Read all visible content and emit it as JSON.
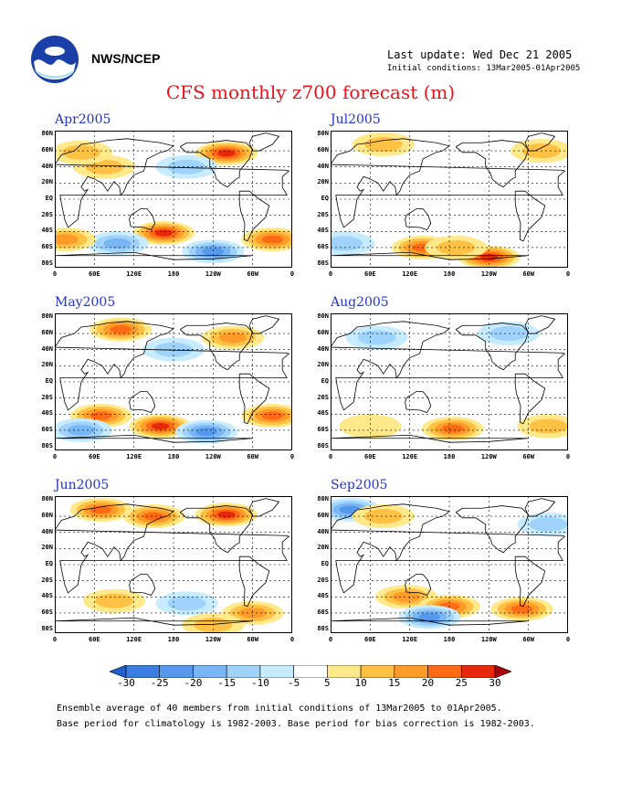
{
  "header": {
    "org": "NWS/NCEP",
    "last_update": "Last update: Wed Dec 21 2005",
    "initial_conditions": "Initial conditions: 13Mar2005-01Apr2005",
    "title": "CFS monthly z700 forecast (m)"
  },
  "logo_icon": "noaa-logo-icon",
  "lat_labels": [
    "80N",
    "60N",
    "40N",
    "20N",
    "EQ",
    "20S",
    "40S",
    "60S",
    "80S"
  ],
  "lon_labels": [
    "0",
    "60E",
    "120E",
    "180",
    "120W",
    "60W",
    "0"
  ],
  "panels": [
    {
      "month": "Apr2005",
      "anomalies": [
        {
          "lon": 260,
          "lat": 57,
          "v": 25
        },
        {
          "lon": 165,
          "lat": -42,
          "v": 25
        },
        {
          "lon": 75,
          "lat": 40,
          "v": 10
        },
        {
          "lon": 330,
          "lat": -50,
          "v": 20
        },
        {
          "lon": 95,
          "lat": -55,
          "v": -15
        },
        {
          "lon": 240,
          "lat": -65,
          "v": -20
        },
        {
          "lon": 40,
          "lat": 58,
          "v": 10
        },
        {
          "lon": 200,
          "lat": 40,
          "v": -10
        },
        {
          "lon": 15,
          "lat": -50,
          "v": 15
        }
      ]
    },
    {
      "month": "Jul2005",
      "anomalies": [
        {
          "lon": 240,
          "lat": -72,
          "v": 25
        },
        {
          "lon": 140,
          "lat": -60,
          "v": 20
        },
        {
          "lon": 20,
          "lat": -55,
          "v": -10
        },
        {
          "lon": 80,
          "lat": 68,
          "v": 10
        },
        {
          "lon": 190,
          "lat": -60,
          "v": 10
        },
        {
          "lon": 320,
          "lat": 60,
          "v": 10
        }
      ]
    },
    {
      "month": "May2005",
      "anomalies": [
        {
          "lon": 100,
          "lat": 65,
          "v": 20
        },
        {
          "lon": 160,
          "lat": -55,
          "v": 25
        },
        {
          "lon": 70,
          "lat": -42,
          "v": 20
        },
        {
          "lon": 330,
          "lat": -42,
          "v": 20
        },
        {
          "lon": 270,
          "lat": 55,
          "v": 15
        },
        {
          "lon": 230,
          "lat": -62,
          "v": -20
        },
        {
          "lon": 40,
          "lat": -60,
          "v": -15
        },
        {
          "lon": 180,
          "lat": 40,
          "v": -10
        }
      ]
    },
    {
      "month": "Aug2005",
      "anomalies": [
        {
          "lon": 185,
          "lat": -58,
          "v": 20
        },
        {
          "lon": 70,
          "lat": 55,
          "v": -10
        },
        {
          "lon": 270,
          "lat": 60,
          "v": -10
        },
        {
          "lon": 330,
          "lat": -55,
          "v": 10
        },
        {
          "lon": 60,
          "lat": -55,
          "v": 5
        }
      ]
    },
    {
      "month": "Jun2005",
      "anomalies": [
        {
          "lon": 70,
          "lat": 68,
          "v": 20
        },
        {
          "lon": 260,
          "lat": 62,
          "v": 25
        },
        {
          "lon": 150,
          "lat": 60,
          "v": 20
        },
        {
          "lon": 200,
          "lat": -48,
          "v": -10
        },
        {
          "lon": 90,
          "lat": -45,
          "v": 10
        },
        {
          "lon": 300,
          "lat": -60,
          "v": 15
        },
        {
          "lon": 240,
          "lat": -75,
          "v": 10
        }
      ]
    },
    {
      "month": "Sep2005",
      "anomalies": [
        {
          "lon": 30,
          "lat": 68,
          "v": -20
        },
        {
          "lon": 330,
          "lat": 50,
          "v": -10
        },
        {
          "lon": 115,
          "lat": -40,
          "v": 15
        },
        {
          "lon": 180,
          "lat": -52,
          "v": 20
        },
        {
          "lon": 150,
          "lat": -65,
          "v": -20
        },
        {
          "lon": 290,
          "lat": -55,
          "v": 20
        },
        {
          "lon": 80,
          "lat": 60,
          "v": 10
        }
      ]
    }
  ],
  "colorbar": {
    "labels": [
      "-30",
      "-25",
      "-20",
      "-15",
      "-10",
      "-5",
      "5",
      "10",
      "15",
      "20",
      "25",
      "30"
    ],
    "colors": [
      "#1f5fd0",
      "#3a7fe0",
      "#5598ec",
      "#78b6f5",
      "#9fd3fb",
      "#c8ecff",
      "#ffffff",
      "#ffe98a",
      "#ffc244",
      "#ff9b28",
      "#ff6a14",
      "#e8280a",
      "#a8000a"
    ]
  },
  "footer": {
    "line1": "Ensemble average of 40 members from initial conditions of 13Mar2005 to 01Apr2005.",
    "line2": "Base period for climatology is 1982-2003. Base period for bias correction is 1982-2003."
  }
}
